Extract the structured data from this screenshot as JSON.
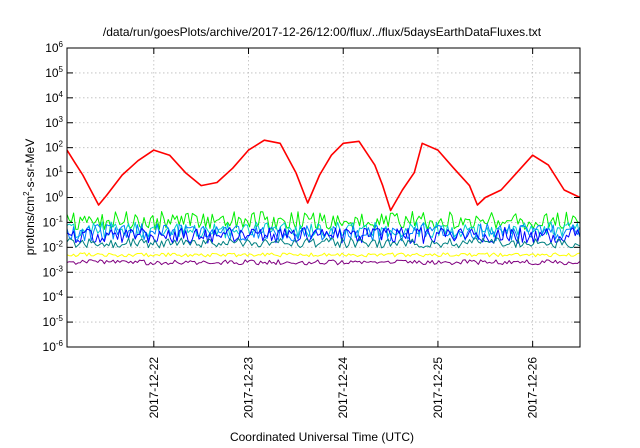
{
  "chart_data": {
    "type": "line",
    "title": "/data/run/goesPlots/archive/2017-12-26/12:00/flux/../flux/5daysEarthDataFluxes.txt",
    "xlabel": "Coordinated Universal Time (UTC)",
    "ylabel": {
      "prefix": "protons/cm",
      "sup": "2",
      "suffix": "-s-sr-MeV"
    },
    "yscale": "log",
    "ylim": [
      -6,
      6
    ],
    "y_ticks": [
      {
        "base": "10",
        "exp": "-6"
      },
      {
        "base": "10",
        "exp": "-5"
      },
      {
        "base": "10",
        "exp": "-4"
      },
      {
        "base": "10",
        "exp": "-3"
      },
      {
        "base": "10",
        "exp": "-2"
      },
      {
        "base": "10",
        "exp": "-1"
      },
      {
        "base": "10",
        "exp": "0"
      },
      {
        "base": "10",
        "exp": "1"
      },
      {
        "base": "10",
        "exp": "2"
      },
      {
        "base": "10",
        "exp": "3"
      },
      {
        "base": "10",
        "exp": "4"
      },
      {
        "base": "10",
        "exp": "5"
      },
      {
        "base": "10",
        "exp": "6"
      }
    ],
    "xlim": [
      "2017-12-21 02:00",
      "2017-12-26 12:00"
    ],
    "x_ticks": [
      "2017-12-22",
      "2017-12-23",
      "2017-12-24",
      "2017-12-25",
      "2017-12-26"
    ],
    "grid": true,
    "legend": "none",
    "series": [
      {
        "color": "#ff0000",
        "x": [
          "2017-12-21 02:00",
          "2017-12-21 04:00",
          "2017-12-21 06:00",
          "2017-12-21 08:00",
          "2017-12-21 10:00",
          "2017-12-21 12:00",
          "2017-12-21 16:00",
          "2017-12-21 20:00",
          "2017-12-22 00:00",
          "2017-12-22 04:00",
          "2017-12-22 08:00",
          "2017-12-22 12:00",
          "2017-12-22 16:00",
          "2017-12-22 20:00",
          "2017-12-23 00:00",
          "2017-12-23 04:00",
          "2017-12-23 08:00",
          "2017-12-23 12:00",
          "2017-12-23 15:00",
          "2017-12-23 18:00",
          "2017-12-23 21:00",
          "2017-12-24 00:00",
          "2017-12-24 04:00",
          "2017-12-24 08:00",
          "2017-12-24 10:00",
          "2017-12-24 12:00",
          "2017-12-24 15:00",
          "2017-12-24 18:00",
          "2017-12-24 20:00",
          "2017-12-25 00:00",
          "2017-12-25 04:00",
          "2017-12-25 08:00",
          "2017-12-25 10:00",
          "2017-12-25 12:00",
          "2017-12-25 16:00",
          "2017-12-25 20:00",
          "2017-12-26 00:00",
          "2017-12-26 04:00",
          "2017-12-26 08:00",
          "2017-12-26 12:00"
        ],
        "y": [
          80,
          25,
          8,
          2,
          0.5,
          1.2,
          8,
          30,
          80,
          50,
          10,
          3,
          4,
          15,
          80,
          200,
          150,
          10,
          0.6,
          8,
          50,
          150,
          180,
          20,
          3,
          0.3,
          2,
          10,
          150,
          80,
          15,
          3,
          0.5,
          1,
          2,
          10,
          50,
          20,
          2,
          1
        ]
      },
      {
        "color": "#00ee00",
        "x": [
          "2017-12-21 02:00",
          "2017-12-26 12:00"
        ],
        "y": [
          0.12,
          0.12
        ]
      },
      {
        "color": "#00cccc",
        "x": [
          "2017-12-21 02:00",
          "2017-12-26 12:00"
        ],
        "y": [
          0.05,
          0.05
        ]
      },
      {
        "color": "#0080ff",
        "x": [
          "2017-12-21 02:00",
          "2017-12-26 12:00"
        ],
        "y": [
          0.04,
          0.04
        ]
      },
      {
        "color": "#0000ff",
        "x": [
          "2017-12-21 02:00",
          "2017-12-26 12:00"
        ],
        "y": [
          0.03,
          0.03
        ]
      },
      {
        "color": "#008080",
        "x": [
          "2017-12-21 02:00",
          "2017-12-26 12:00"
        ],
        "y": [
          0.015,
          0.015
        ]
      },
      {
        "color": "#ffff00",
        "x": [
          "2017-12-21 02:00",
          "2017-12-26 12:00"
        ],
        "y": [
          0.005,
          0.005
        ]
      },
      {
        "color": "#800080",
        "x": [
          "2017-12-21 02:00",
          "2017-12-26 12:00"
        ],
        "y": [
          0.0025,
          0.0025
        ]
      }
    ]
  }
}
